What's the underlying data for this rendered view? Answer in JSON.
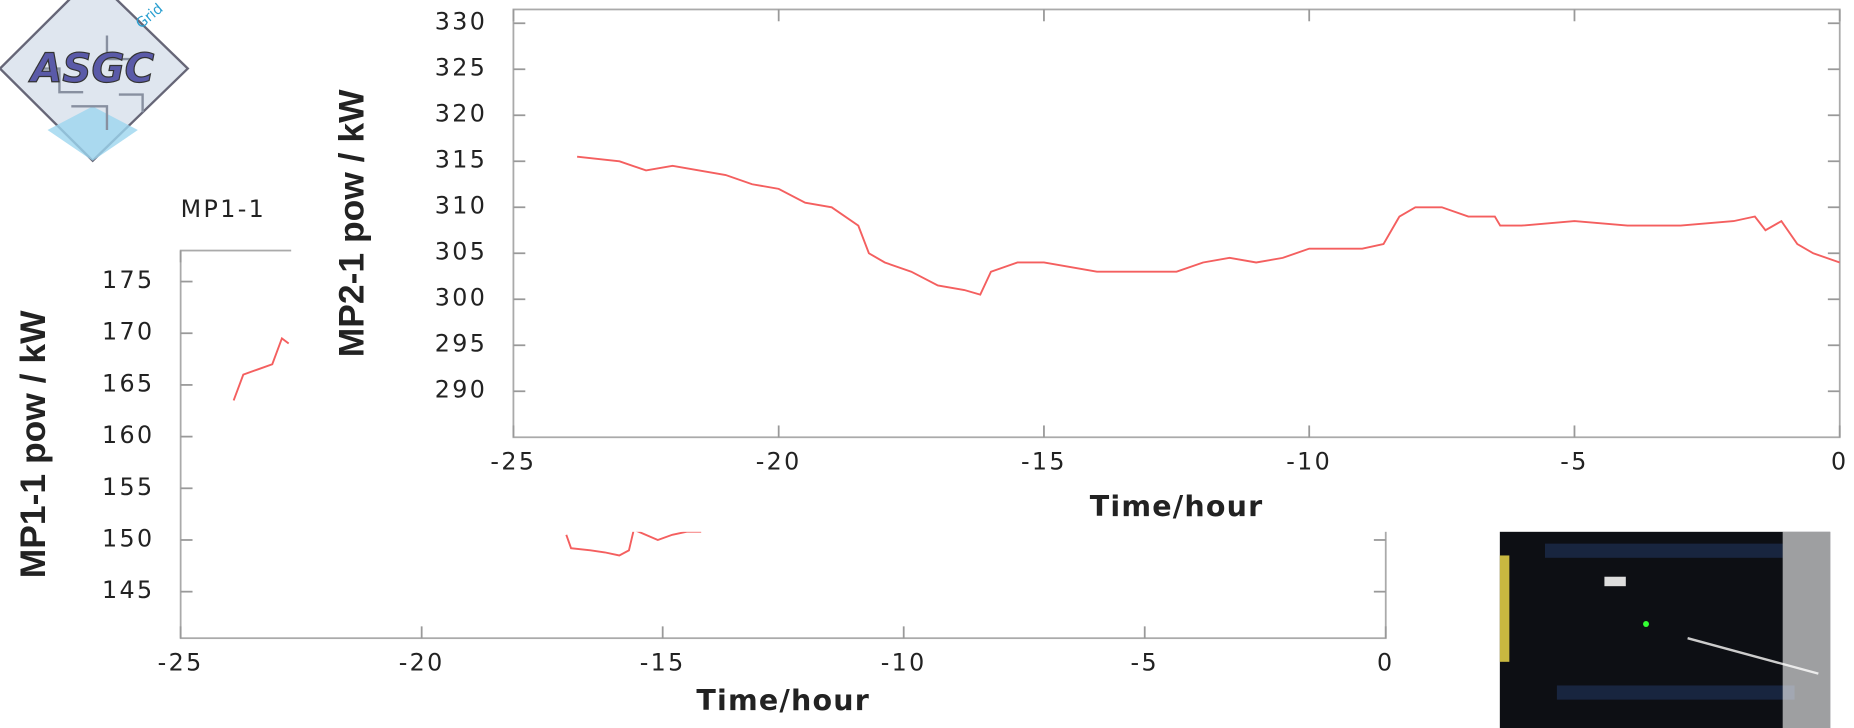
{
  "logo": {
    "text": "ASGC",
    "subtext": "Grid"
  },
  "chart_data": [
    {
      "type": "line",
      "title": "MP1-1",
      "y_label": "MP1-1 pow / kW",
      "x_label": "Time/hour",
      "xlim": [
        -25,
        0
      ],
      "xticks": [
        -25,
        -20,
        -15,
        -10,
        -5,
        0
      ],
      "ylim": [
        140.5,
        178
      ],
      "yticks": [
        145,
        150,
        155,
        160,
        165,
        170,
        175
      ],
      "x": [
        -23.9,
        -23.7,
        -23.4,
        -23.1,
        -22.9,
        -22.76,
        -17.5,
        -17.0,
        -16.9,
        -16.5,
        -16.2,
        -15.9,
        -15.7,
        -15.6,
        -15.1,
        -14.8,
        -14.5,
        -14.2
      ],
      "series": [
        {
          "color": "#f45f5f",
          "values": [
            163.5,
            166,
            166.5,
            167,
            169.5,
            169,
            null,
            150.5,
            149.2,
            149,
            148.8,
            148.5,
            149,
            151,
            150,
            150.5,
            150.8,
            150.8
          ]
        }
      ]
    },
    {
      "type": "line",
      "y_label": "MP2-1 pow / kW",
      "x_label": "Time/hour",
      "xlim": [
        -25,
        0
      ],
      "xticks": [
        -25,
        -20,
        -15,
        -10,
        -5,
        0
      ],
      "ylim": [
        285,
        331.5
      ],
      "yticks": [
        290,
        295,
        300,
        305,
        310,
        315,
        320,
        325,
        330
      ],
      "x": [
        -23.8,
        -23,
        -22.5,
        -22,
        -21.5,
        -21,
        -20.5,
        -20,
        -19.5,
        -19,
        -18.5,
        -18.3,
        -18,
        -17.5,
        -17,
        -16.5,
        -16.2,
        -16,
        -15.5,
        -15,
        -14.5,
        -14,
        -13.5,
        -13,
        -12.5,
        -12,
        -11.5,
        -11,
        -10.5,
        -10,
        -9.5,
        -9,
        -8.6,
        -8.3,
        -8,
        -7.5,
        -7,
        -6.5,
        -6.4,
        -6,
        -5,
        -4,
        -3,
        -2,
        -1.6,
        -1.4,
        -1.1,
        -0.8,
        -0.5,
        0
      ],
      "series": [
        {
          "color": "#f45f5f",
          "values": [
            315.5,
            315,
            314,
            314.5,
            314,
            313.5,
            312.5,
            312,
            310.5,
            310,
            308,
            305,
            304,
            303,
            301.5,
            301,
            300.5,
            303,
            304,
            304,
            303.5,
            303,
            303,
            303,
            303,
            304,
            304.5,
            304,
            304.5,
            305.5,
            305.5,
            305.5,
            306,
            309,
            310,
            310,
            309,
            309,
            308,
            308,
            308.5,
            308,
            308,
            308.5,
            309,
            307.5,
            308.5,
            306,
            305,
            304
          ]
        }
      ]
    }
  ]
}
